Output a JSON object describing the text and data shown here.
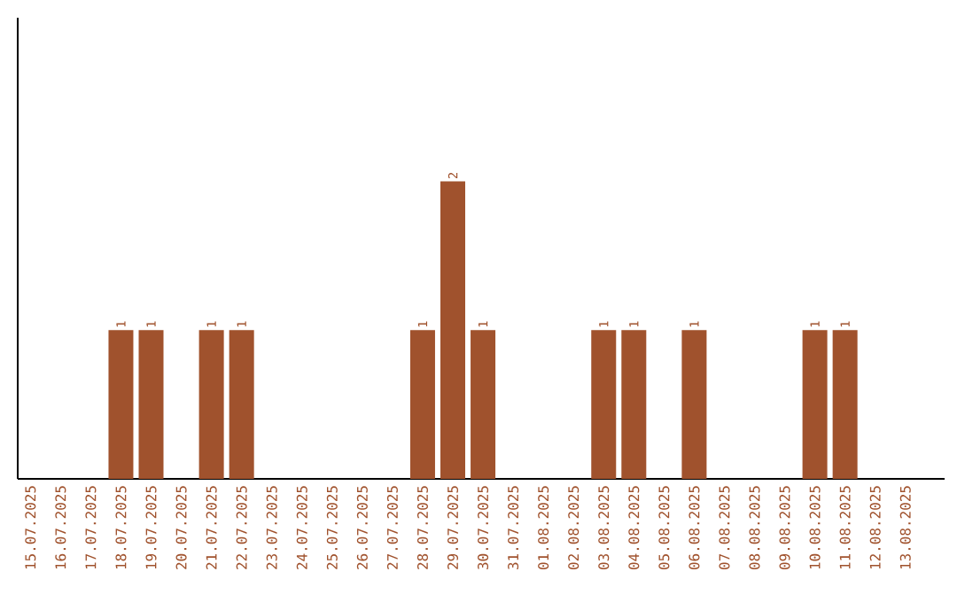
{
  "chart_data": {
    "type": "bar",
    "categories": [
      "15.07.2025",
      "16.07.2025",
      "17.07.2025",
      "18.07.2025",
      "19.07.2025",
      "20.07.2025",
      "21.07.2025",
      "22.07.2025",
      "23.07.2025",
      "24.07.2025",
      "25.07.2025",
      "26.07.2025",
      "27.07.2025",
      "28.07.2025",
      "29.07.2025",
      "30.07.2025",
      "31.07.2025",
      "01.08.2025",
      "02.08.2025",
      "03.08.2025",
      "04.08.2025",
      "05.08.2025",
      "06.08.2025",
      "07.08.2025",
      "08.08.2025",
      "09.08.2025",
      "10.08.2025",
      "11.08.2025",
      "12.08.2025",
      "13.08.2025"
    ],
    "values": [
      0,
      0,
      0,
      1,
      1,
      0,
      1,
      1,
      0,
      0,
      0,
      0,
      0,
      1,
      2,
      1,
      0,
      0,
      0,
      1,
      1,
      0,
      1,
      0,
      0,
      0,
      1,
      1,
      0,
      0
    ],
    "value_labels": [
      null,
      null,
      null,
      "1",
      "1",
      null,
      "1",
      "1",
      null,
      null,
      null,
      null,
      null,
      "1",
      "2",
      "1",
      null,
      null,
      null,
      "1",
      "1",
      null,
      "1",
      null,
      null,
      null,
      "1",
      "1",
      null,
      null
    ],
    "color": "#a0522d",
    "ylim": [
      0,
      3.1
    ],
    "tick_labels": "x"
  }
}
